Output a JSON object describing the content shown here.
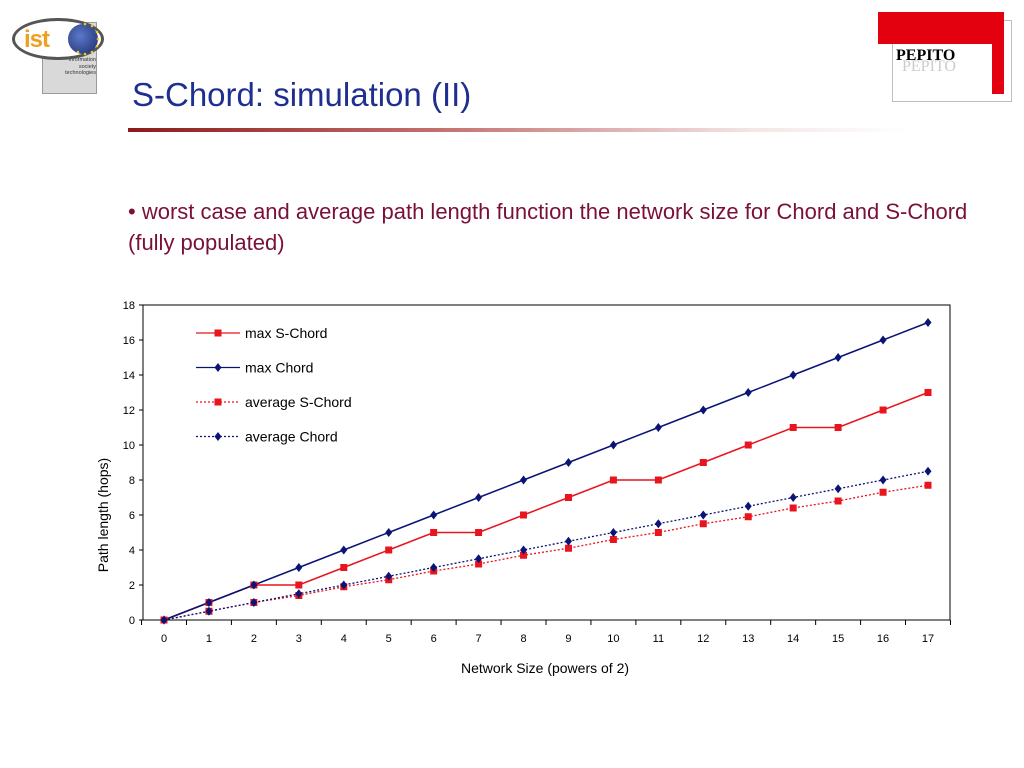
{
  "header": {
    "title": "S-Chord: simulation (II)",
    "ist_logo": {
      "word": "ist",
      "caption": "information\nsociety\ntechnologies"
    },
    "pepito_logo": {
      "text": "PEPITO"
    }
  },
  "bullet_text": "• worst case and average path length function the network size for Chord and S-Chord (fully populated)",
  "chart_data": {
    "type": "line",
    "xlabel": "Network Size (powers of 2)",
    "ylabel": "Path length (hops)",
    "xlim": [
      0,
      17
    ],
    "ylim": [
      0,
      18
    ],
    "x": [
      0,
      1,
      2,
      3,
      4,
      5,
      6,
      7,
      8,
      9,
      10,
      11,
      12,
      13,
      14,
      15,
      16,
      17
    ],
    "y_ticks": [
      0,
      2,
      4,
      6,
      8,
      10,
      12,
      14,
      16,
      18
    ],
    "legend_position": "top-left",
    "grid": false,
    "series": [
      {
        "name": "max S-Chord",
        "color": "#e8141e",
        "style": "solid",
        "marker": "square",
        "values": [
          0,
          1,
          2,
          2,
          3,
          4,
          5,
          5,
          6,
          7,
          8,
          8,
          9,
          10,
          11,
          11,
          12,
          13
        ]
      },
      {
        "name": "max Chord",
        "color": "#0a1477",
        "style": "solid",
        "marker": "diamond",
        "values": [
          0,
          1,
          2,
          3,
          4,
          5,
          6,
          7,
          8,
          9,
          10,
          11,
          12,
          13,
          14,
          15,
          16,
          17
        ]
      },
      {
        "name": "average S-Chord",
        "color": "#e8141e",
        "style": "dotted",
        "marker": "square",
        "values": [
          0,
          0.5,
          1,
          1.4,
          1.9,
          2.3,
          2.8,
          3.2,
          3.7,
          4.1,
          4.6,
          5.0,
          5.5,
          5.9,
          6.4,
          6.8,
          7.3,
          7.7
        ]
      },
      {
        "name": "average Chord",
        "color": "#0a1477",
        "style": "dotted",
        "marker": "diamond",
        "values": [
          0,
          0.5,
          1,
          1.5,
          2,
          2.5,
          3,
          3.5,
          4,
          4.5,
          5,
          5.5,
          6,
          6.5,
          7,
          7.5,
          8,
          8.5
        ]
      }
    ]
  }
}
